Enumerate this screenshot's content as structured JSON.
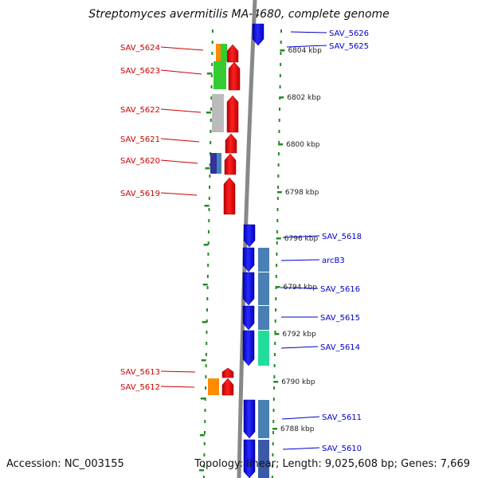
{
  "title": "Streptomyces avermitilis MA-4680, complete genome",
  "footer": {
    "accession": "Accession: NC_003155",
    "topology": "Topology: linear; Length: 9,025,608 bp; Genes: 7,669"
  },
  "colors": {
    "left_label": "#cc0000",
    "right_label": "#0000cc",
    "forward_gene": "#ee0000",
    "reverse_gene": "#0000ee",
    "tick": "#228b22",
    "backbone": "#888888"
  },
  "scale": {
    "unit": "kbp",
    "ticks": [
      {
        "label": "6804 kbp"
      },
      {
        "label": "6802 kbp"
      },
      {
        "label": "6800 kbp"
      },
      {
        "label": "6798 kbp"
      },
      {
        "label": "6796 kbp"
      },
      {
        "label": "6794 kbp"
      },
      {
        "label": "6792 kbp"
      },
      {
        "label": "6790 kbp"
      },
      {
        "label": "6788 kbp"
      }
    ]
  },
  "genes_left": [
    {
      "name": "SAV_5624",
      "strand": "+",
      "category_colors": [
        "#ff8c00",
        "#33cc33"
      ]
    },
    {
      "name": "SAV_5623",
      "strand": "+",
      "category_colors": [
        "#33cc33"
      ]
    },
    {
      "name": "SAV_5622",
      "strand": "+",
      "category_colors": [
        "#bbbbbb"
      ]
    },
    {
      "name": "SAV_5621",
      "strand": "+",
      "category_colors": []
    },
    {
      "name": "SAV_5620",
      "strand": "+",
      "category_colors": [
        "#333399",
        "#4682b4"
      ]
    },
    {
      "name": "SAV_5619",
      "strand": "+",
      "category_colors": []
    },
    {
      "name": "SAV_5613",
      "strand": "+",
      "category_colors": []
    },
    {
      "name": "SAV_5612",
      "strand": "+",
      "category_colors": [
        "#ff8c00"
      ]
    }
  ],
  "genes_right": [
    {
      "name": "SAV_5626",
      "strand": "-"
    },
    {
      "name": "SAV_5625",
      "strand": "-"
    },
    {
      "name": "SAV_5618",
      "strand": "-"
    },
    {
      "name": "arcB3",
      "strand": "-"
    },
    {
      "name": "SAV_5616",
      "strand": "-"
    },
    {
      "name": "SAV_5615",
      "strand": "-"
    },
    {
      "name": "SAV_5614",
      "strand": "-"
    },
    {
      "name": "SAV_5611",
      "strand": "-"
    },
    {
      "name": "SAV_5610",
      "strand": "-"
    }
  ]
}
